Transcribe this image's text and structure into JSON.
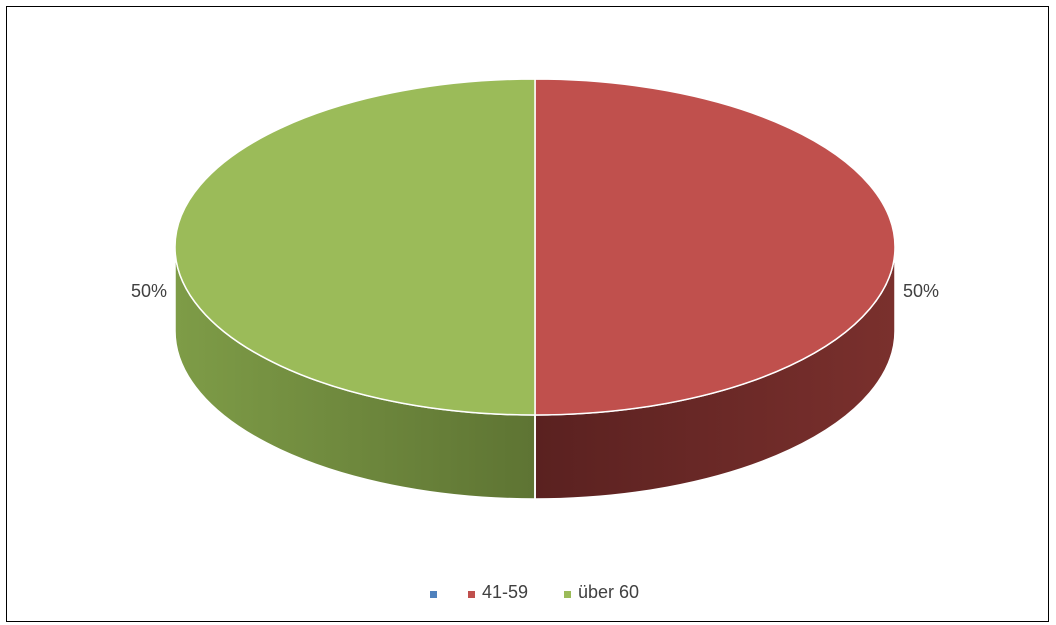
{
  "chart_data": {
    "type": "pie",
    "style": "3d",
    "title": "",
    "legend_position": "bottom",
    "categories": [
      "",
      "41-59",
      "über 60"
    ],
    "values": [
      0,
      50,
      50
    ],
    "data_labels": [
      "",
      "50%",
      "50%"
    ],
    "colors": [
      "#4F81BD",
      "#C0504D",
      "#9BBB59"
    ],
    "side_colors": [
      "#2C4D75",
      "#5A2120",
      "#5E7433"
    ],
    "side_light_colors": [
      "#4F81BD",
      "#7A302D",
      "#7E9C47"
    ]
  }
}
